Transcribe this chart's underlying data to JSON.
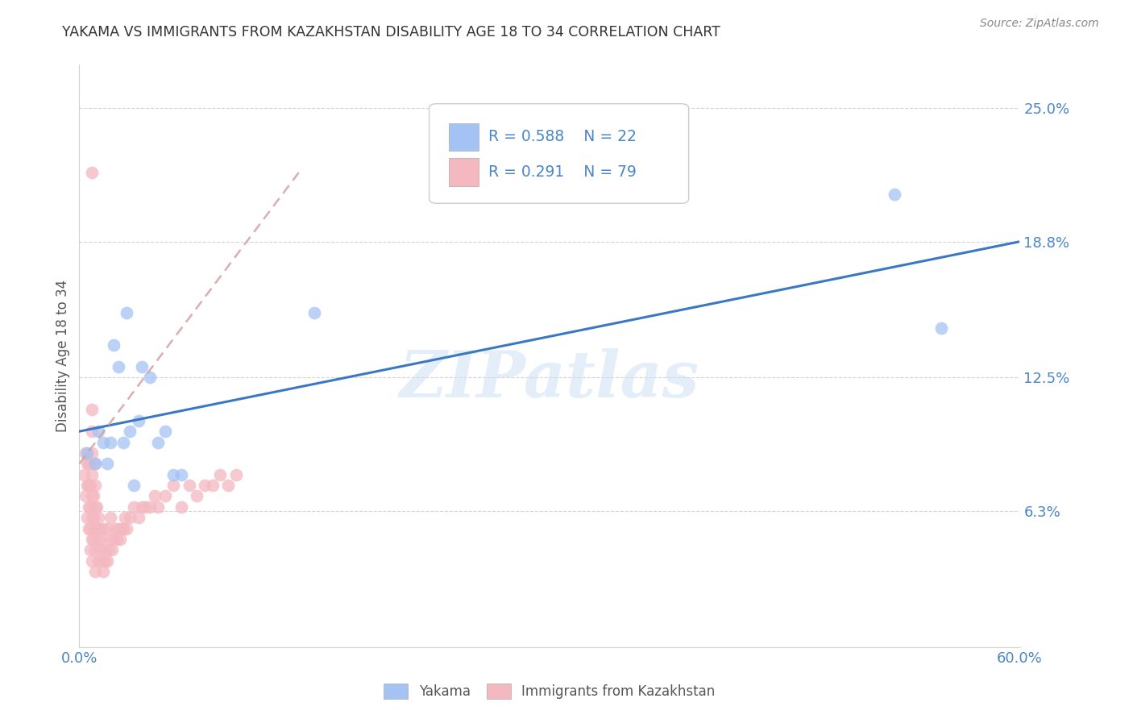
{
  "title": "YAKAMA VS IMMIGRANTS FROM KAZAKHSTAN DISABILITY AGE 18 TO 34 CORRELATION CHART",
  "source": "Source: ZipAtlas.com",
  "ylabel": "Disability Age 18 to 34",
  "blue_label": "Yakama",
  "pink_label": "Immigrants from Kazakhstan",
  "legend_R_blue": "R = 0.588",
  "legend_N_blue": "N = 22",
  "legend_R_pink": "R = 0.291",
  "legend_N_pink": "N = 79",
  "watermark": "ZIPatlas",
  "xmin": 0.0,
  "xmax": 0.6,
  "ymin": 0.0,
  "ymax": 0.27,
  "ytick_vals": [
    0.063,
    0.125,
    0.188,
    0.25
  ],
  "ytick_labels": [
    "6.3%",
    "12.5%",
    "18.8%",
    "25.0%"
  ],
  "xtick_vals": [
    0.0,
    0.1,
    0.2,
    0.3,
    0.4,
    0.5,
    0.6
  ],
  "xtick_labels": [
    "0.0%",
    "",
    "",
    "",
    "",
    "",
    "60.0%"
  ],
  "blue_color": "#a4c2f4",
  "pink_color": "#f4b8c1",
  "blue_line_color": "#3b78c4",
  "pink_line_color": "#d4a0a0",
  "axis_tick_color": "#4a86c8",
  "title_color": "#333333",
  "grid_color": "#d0d0d0",
  "source_color": "#888888",
  "blue_scatter_x": [
    0.005,
    0.01,
    0.012,
    0.015,
    0.018,
    0.02,
    0.022,
    0.025,
    0.028,
    0.03,
    0.032,
    0.035,
    0.038,
    0.04,
    0.045,
    0.05,
    0.055,
    0.06,
    0.065,
    0.15,
    0.52,
    0.55
  ],
  "blue_scatter_y": [
    0.09,
    0.085,
    0.1,
    0.095,
    0.085,
    0.095,
    0.14,
    0.13,
    0.095,
    0.155,
    0.1,
    0.075,
    0.105,
    0.13,
    0.125,
    0.095,
    0.1,
    0.08,
    0.08,
    0.155,
    0.21,
    0.148
  ],
  "pink_outlier_x": [
    0.008
  ],
  "pink_outlier_y": [
    0.22
  ],
  "pink_cluster_x": [
    0.003,
    0.004,
    0.004,
    0.005,
    0.005,
    0.005,
    0.006,
    0.006,
    0.006,
    0.006,
    0.007,
    0.007,
    0.007,
    0.007,
    0.007,
    0.008,
    0.008,
    0.008,
    0.008,
    0.008,
    0.008,
    0.008,
    0.008,
    0.009,
    0.009,
    0.009,
    0.01,
    0.01,
    0.01,
    0.01,
    0.01,
    0.01,
    0.011,
    0.011,
    0.012,
    0.012,
    0.012,
    0.013,
    0.013,
    0.014,
    0.014,
    0.015,
    0.015,
    0.016,
    0.017,
    0.018,
    0.018,
    0.019,
    0.02,
    0.02,
    0.021,
    0.022,
    0.023,
    0.024,
    0.025,
    0.026,
    0.027,
    0.028,
    0.029,
    0.03,
    0.032,
    0.035,
    0.038,
    0.04,
    0.042,
    0.045,
    0.048,
    0.05,
    0.055,
    0.06,
    0.065,
    0.07,
    0.075,
    0.08,
    0.085,
    0.09,
    0.095,
    0.1
  ],
  "pink_cluster_y": [
    0.08,
    0.07,
    0.09,
    0.06,
    0.075,
    0.085,
    0.055,
    0.065,
    0.075,
    0.085,
    0.045,
    0.055,
    0.065,
    0.075,
    0.085,
    0.04,
    0.05,
    0.06,
    0.07,
    0.08,
    0.09,
    0.1,
    0.11,
    0.05,
    0.06,
    0.07,
    0.035,
    0.045,
    0.055,
    0.065,
    0.075,
    0.085,
    0.055,
    0.065,
    0.04,
    0.05,
    0.06,
    0.045,
    0.055,
    0.04,
    0.05,
    0.035,
    0.055,
    0.04,
    0.045,
    0.04,
    0.055,
    0.045,
    0.05,
    0.06,
    0.045,
    0.05,
    0.055,
    0.05,
    0.055,
    0.05,
    0.055,
    0.055,
    0.06,
    0.055,
    0.06,
    0.065,
    0.06,
    0.065,
    0.065,
    0.065,
    0.07,
    0.065,
    0.07,
    0.075,
    0.065,
    0.075,
    0.07,
    0.075,
    0.075,
    0.08,
    0.075,
    0.08
  ],
  "blue_line_x": [
    0.0,
    0.6
  ],
  "blue_line_y": [
    0.1,
    0.188
  ],
  "pink_line_x": [
    0.0,
    0.14
  ],
  "pink_line_y": [
    0.085,
    0.22
  ]
}
